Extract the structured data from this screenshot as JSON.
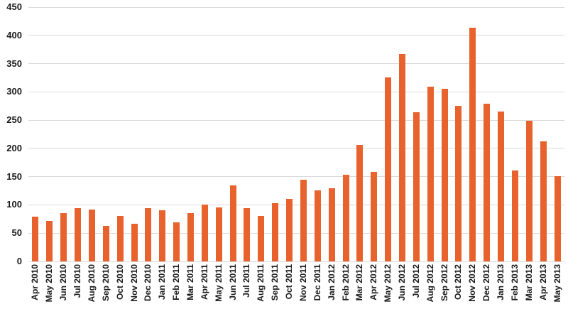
{
  "chart_data": {
    "type": "bar",
    "title": "",
    "xlabel": "",
    "ylabel": "",
    "legend": "none",
    "grid": "horizontal",
    "ylim": [
      0,
      450
    ],
    "yticks": [
      0,
      50,
      100,
      150,
      200,
      250,
      300,
      350,
      400,
      450
    ],
    "categories": [
      "Apr 2010",
      "May 2010",
      "Jun 2010",
      "Jul 2010",
      "Aug 2010",
      "Sep 2010",
      "Oct 2010",
      "Nov 2010",
      "Dec 2010",
      "Jan 2011",
      "Feb 2011",
      "Mar 2011",
      "Apr 2011",
      "May 2011",
      "Jun 2011",
      "Jul 2011",
      "Aug 2011",
      "Sep 2011",
      "Oct 2011",
      "Nov 2011",
      "Dec 2011",
      "Jan 2012",
      "Feb 2012",
      "Mar 2012",
      "Apr 2012",
      "May 2012",
      "Jun 2012",
      "Jul 2012",
      "Aug 2012",
      "Sep 2012",
      "Oct 2012",
      "Nov 2012",
      "Dec 2012",
      "Jan 2013",
      "Feb 2013",
      "Mar 2013",
      "Apr 2013",
      "May 2013"
    ],
    "values": [
      79,
      72,
      86,
      94,
      92,
      63,
      81,
      66,
      94,
      91,
      69,
      86,
      101,
      95,
      134,
      94,
      81,
      103,
      111,
      145,
      126,
      130,
      153,
      206,
      158,
      326,
      367,
      264,
      309,
      306,
      275,
      413,
      279,
      265,
      161,
      249,
      212,
      151
    ],
    "colors": {
      "bar": "#E8622D",
      "gridline": "#DADADA",
      "label": "#1A1A1A",
      "background": "#FFFFFF"
    }
  }
}
